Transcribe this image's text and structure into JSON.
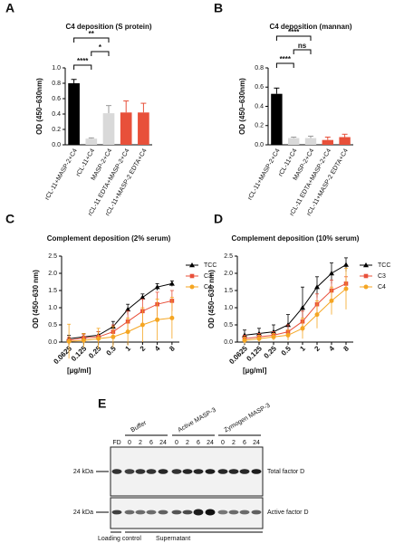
{
  "chart_data": [
    {
      "type": "bar",
      "panel": "A",
      "title": "C4 deposition (S protein)",
      "ylabel": "OD (450–630nm)",
      "categories": [
        "rCL-11+MASP-2+C4",
        "rCL-11+C4",
        "MASP-2+C4",
        "rCL-11 EDTA+MASP-2+C4",
        "rCL-11+MASP-2 EDTA+C4"
      ],
      "values": [
        0.8,
        0.08,
        0.41,
        0.42,
        0.42
      ],
      "errors": [
        0.05,
        0.01,
        0.1,
        0.15,
        0.12
      ],
      "colors": [
        "#000000",
        "#d9d9d9",
        "#d9d9d9",
        "#e8503a",
        "#e8503a"
      ],
      "ylim": [
        0,
        1
      ],
      "yticks": [
        {
          "value": 0,
          "label": "0.0"
        },
        0.2,
        0.4,
        0.6,
        0.8,
        {
          "value": 1,
          "label": "1.0"
        }
      ],
      "annotations": [
        "****",
        "*",
        "**"
      ]
    },
    {
      "type": "bar",
      "panel": "B",
      "title": "C4 deposition (mannan)",
      "ylabel": "OD (450–630nm)",
      "categories": [
        "rCL-11+MASP-2+C4",
        "rCL-11+C4",
        "MASP-2+C4",
        "rCL-11 EDTA+MASP-2+C4",
        "rCL-11+MASP-2 EDTA+C4"
      ],
      "values": [
        0.53,
        0.07,
        0.07,
        0.05,
        0.08
      ],
      "errors": [
        0.06,
        0.01,
        0.02,
        0.03,
        0.03
      ],
      "colors": [
        "#000000",
        "#d9d9d9",
        "#d9d9d9",
        "#e8503a",
        "#e8503a"
      ],
      "ylim": [
        0,
        0.8
      ],
      "yticks": [
        {
          "value": 0,
          "label": "0.0"
        },
        0.2,
        0.4,
        0.6,
        0.8
      ],
      "annotations": [
        "****",
        "ns",
        "****"
      ]
    },
    {
      "type": "line",
      "panel": "C",
      "title": "Complement deposition (2% serum)",
      "ylabel": "OD (450–630 nm)",
      "xlabel": "[µg/ml]",
      "categories": [
        "0.0625",
        "0.125",
        "0.25",
        "0.5",
        "1",
        "2",
        "4",
        "8"
      ],
      "ylim": [
        0,
        2.5
      ],
      "yticks": [
        {
          "value": 0,
          "label": "0.0"
        },
        0.5,
        {
          "value": 1,
          "label": "1.0"
        },
        1.5,
        {
          "value": 2,
          "label": "2.0"
        },
        2.5
      ],
      "series": [
        {
          "name": "TCC",
          "color": "#000000",
          "marker": "triangle",
          "values": [
            0.1,
            0.15,
            0.2,
            0.45,
            0.95,
            1.3,
            1.6,
            1.7
          ],
          "errors": [
            0.1,
            0.1,
            0.1,
            0.15,
            0.15,
            0.1,
            0.1,
            0.08
          ]
        },
        {
          "name": "C3",
          "color": "#e8503a",
          "marker": "square",
          "values": [
            0.05,
            0.12,
            0.15,
            0.3,
            0.6,
            0.9,
            1.1,
            1.2
          ],
          "errors": [
            0.1,
            0.1,
            0.15,
            0.2,
            0.3,
            0.35,
            0.35,
            0.3
          ]
        },
        {
          "name": "C4",
          "color": "#f5a623",
          "marker": "circle",
          "values": [
            0.02,
            0.05,
            0.1,
            0.15,
            0.3,
            0.5,
            0.65,
            0.7
          ],
          "errors": [
            0.5,
            0.2,
            0.3,
            0.3,
            0.4,
            0.5,
            0.6,
            0.6
          ]
        }
      ]
    },
    {
      "type": "line",
      "panel": "D",
      "title": "Complement deposition (10% serum)",
      "ylabel": "OD (450–630 nm)",
      "xlabel": "[µg/ml]",
      "categories": [
        "0.0625",
        "0.125",
        "0.25",
        "0.5",
        "1",
        "2",
        "4",
        "8"
      ],
      "ylim": [
        0,
        2.5
      ],
      "yticks": [
        {
          "value": 0,
          "label": "0.0"
        },
        0.5,
        {
          "value": 1,
          "label": "1.0"
        },
        1.5,
        {
          "value": 2,
          "label": "2.0"
        },
        2.5
      ],
      "series": [
        {
          "name": "TCC",
          "color": "#000000",
          "marker": "triangle",
          "values": [
            0.2,
            0.25,
            0.3,
            0.5,
            1.0,
            1.6,
            2.0,
            2.25
          ],
          "errors": [
            0.15,
            0.15,
            0.2,
            0.3,
            0.6,
            0.3,
            0.3,
            0.2
          ]
        },
        {
          "name": "C3",
          "color": "#e8503a",
          "marker": "square",
          "values": [
            0.1,
            0.15,
            0.2,
            0.3,
            0.6,
            1.1,
            1.5,
            1.7
          ],
          "errors": [
            0.1,
            0.1,
            0.1,
            0.2,
            0.3,
            0.3,
            0.3,
            0.2
          ]
        },
        {
          "name": "C4",
          "color": "#f5a623",
          "marker": "circle",
          "values": [
            0.05,
            0.1,
            0.15,
            0.2,
            0.4,
            0.8,
            1.2,
            1.55
          ],
          "errors": [
            0.1,
            0.1,
            0.1,
            0.15,
            0.3,
            0.4,
            0.4,
            0.6
          ]
        }
      ]
    }
  ],
  "blot": {
    "panel": "E",
    "groups": [
      "Buffer",
      "Active MASP-3",
      "Zymogen MASP-3"
    ],
    "lanes": [
      "FD",
      "0",
      "2",
      "6",
      "24",
      "0",
      "2",
      "6",
      "24",
      "0",
      "2",
      "6",
      "24"
    ],
    "markers": [
      "24 kDa",
      "24 kDa"
    ],
    "rows": [
      "Total factor D",
      "Active factor D"
    ],
    "footer": [
      "Loading control",
      "Supernatant"
    ]
  }
}
